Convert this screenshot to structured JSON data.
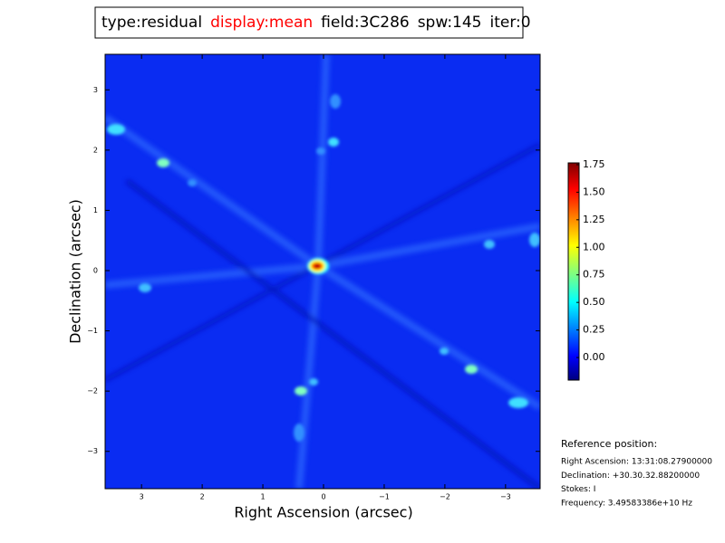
{
  "chart_data": {
    "type": "image",
    "title_parts": [
      {
        "text": "type:residual",
        "color": "#000000"
      },
      {
        "text": "display:mean",
        "color": "#ff0000"
      },
      {
        "text": "field:3C286",
        "color": "#000000"
      },
      {
        "text": "spw:145",
        "color": "#000000"
      },
      {
        "text": "iter:0",
        "color": "#000000"
      }
    ],
    "x_label": "Right Ascension (arcsec)",
    "y_label": "Declination (arcsec)",
    "xlim": [
      3.6,
      -3.57
    ],
    "xticks": [
      3,
      2,
      1,
      0,
      {
        "value": -1,
        "label": "−1"
      },
      {
        "value": -2,
        "label": "−2"
      },
      {
        "value": -3,
        "label": "−3"
      }
    ],
    "ylim": [
      -3.62,
      3.59
    ],
    "yticks": [
      {
        "value": -3,
        "label": "−3"
      },
      {
        "value": -2,
        "label": "−2"
      },
      {
        "value": -1,
        "label": "−1"
      },
      0,
      1,
      2,
      3
    ],
    "clim": [
      -0.205,
      1.766
    ],
    "cticks": [
      {
        "value": 0,
        "label": "0.00"
      },
      {
        "value": 0.25,
        "label": "0.25"
      },
      {
        "value": 0.5,
        "label": "0.50"
      },
      {
        "value": 0.75,
        "label": "0.75"
      },
      {
        "value": 1,
        "label": "1.00"
      },
      {
        "value": 1.25,
        "label": "1.25"
      },
      {
        "value": 1.5,
        "label": "1.50"
      },
      {
        "value": 1.75,
        "label": "1.75"
      }
    ],
    "annotations": {
      "heading": "Reference position:",
      "lines": [
        "Right Ascension: 13:31:08.27900000",
        "Declination: +30.30.32.88200000",
        "Stokes: I",
        "Frequency: 3.49583386e+10 Hz"
      ]
    }
  }
}
